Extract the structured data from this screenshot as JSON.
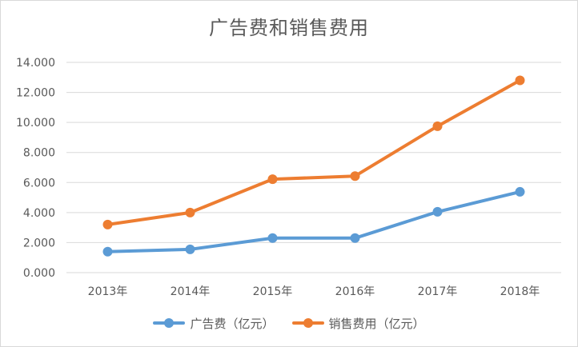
{
  "chart_data": {
    "type": "line",
    "title": "广告费和销售费用",
    "categories": [
      "2013年",
      "2014年",
      "2015年",
      "2016年",
      "2017年",
      "2018年"
    ],
    "y_ticks": [
      "0.000",
      "2.000",
      "4.000",
      "6.000",
      "8.000",
      "10.000",
      "12.000",
      "14.000"
    ],
    "ylim": [
      0,
      14
    ],
    "grid": true,
    "legend_position": "bottom",
    "series": [
      {
        "name": "广告费（亿元）",
        "values": [
          1.4,
          1.55,
          2.3,
          2.3,
          4.05,
          5.38
        ],
        "color": "#5b9bd5"
      },
      {
        "name": "销售费用（亿元）",
        "values": [
          3.2,
          4.0,
          6.22,
          6.43,
          9.75,
          12.8
        ],
        "color": "#ed7d31"
      }
    ]
  }
}
